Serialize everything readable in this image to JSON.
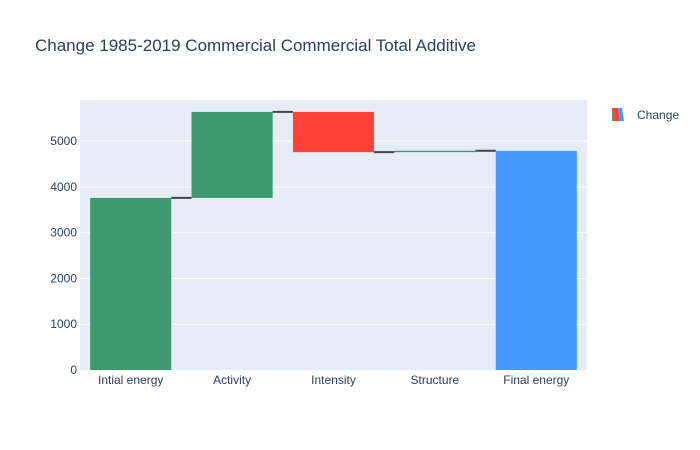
{
  "chart_data": {
    "type": "waterfall",
    "title": "Change 1985-2019 Commercial Commercial Total Additive",
    "xlabel": "",
    "ylabel": "",
    "categories": [
      "Intial energy",
      "Activity",
      "Intensity",
      "Structure",
      "Final energy"
    ],
    "measures": [
      "absolute",
      "relative",
      "relative",
      "relative",
      "total"
    ],
    "values": [
      3760,
      1880,
      -880,
      30,
      4790
    ],
    "ylim": [
      0,
      5900
    ],
    "yticks": [
      0,
      1000,
      2000,
      3000,
      4000,
      5000
    ],
    "grid": true,
    "legend": {
      "position": "top-right",
      "entries": [
        "Change"
      ]
    },
    "colors": {
      "increasing": "#3d9970",
      "decreasing": "#ff4136",
      "total": "#4499ff",
      "connector": "#444444",
      "plot_bg": "#e5ecf6",
      "grid": "#ffffff",
      "text": "#2a3f5f"
    }
  }
}
